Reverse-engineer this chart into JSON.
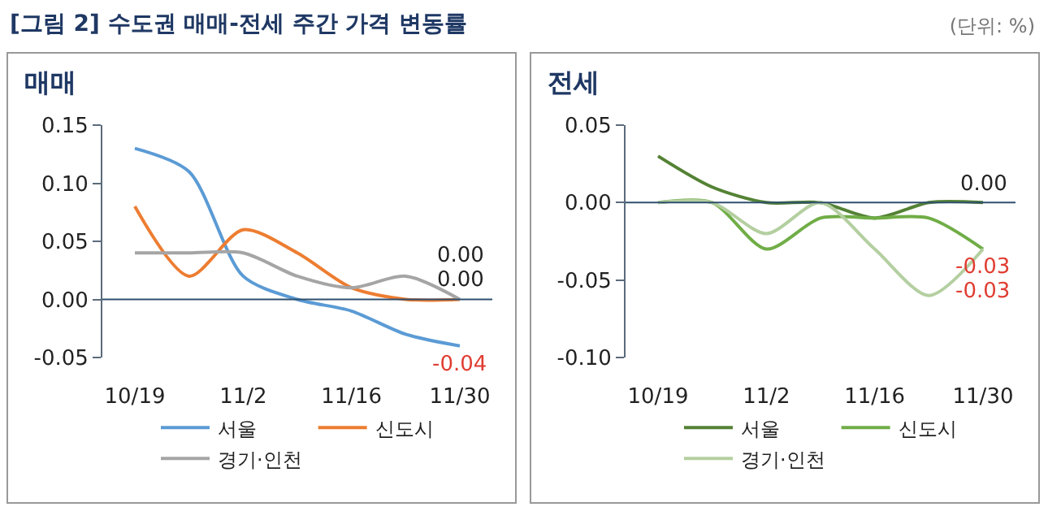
{
  "chart_data": [
    {
      "type": "line",
      "title": "매매",
      "annotations": [
        "[그림 2] 수도권 매매-전세 주간 가격 변동률",
        "(단위: %)"
      ],
      "categories": [
        "10/19",
        null,
        "11/2",
        null,
        "11/16",
        null,
        "11/30"
      ],
      "series": [
        {
          "name": "서울",
          "color": "#5b9bd5",
          "values": [
            0.13,
            0.11,
            0.02,
            0.0,
            -0.01,
            -0.03,
            -0.04
          ],
          "value_labels": [
            null,
            null,
            null,
            null,
            null,
            null,
            "-0.04"
          ]
        },
        {
          "name": "신도시",
          "color": "#ed7d31",
          "values": [
            0.08,
            0.02,
            0.06,
            0.04,
            0.01,
            0.0,
            0.0
          ],
          "value_labels": [
            null,
            null,
            null,
            null,
            null,
            null,
            "0.00"
          ]
        },
        {
          "name": "경기·인천",
          "color": "#a5a5a5",
          "values": [
            0.04,
            0.04,
            0.04,
            0.02,
            0.01,
            0.02,
            0.0
          ],
          "value_labels": [
            null,
            null,
            null,
            null,
            null,
            null,
            "0.00"
          ]
        }
      ],
      "ylim": [
        -0.05,
        0.15
      ],
      "yticks": [
        -0.05,
        {
          "value": 0,
          "label": "0.00"
        },
        0.05,
        {
          "value": 0.1,
          "label": "0.10"
        },
        0.15
      ],
      "ref_lines": [
        {
          "axis": "y",
          "value": 0,
          "color": "#2f4f6f"
        }
      ],
      "grid": false,
      "legend": "bottom",
      "marker": "none"
    },
    {
      "type": "line",
      "title": "전세",
      "categories": [
        "10/19",
        null,
        "11/2",
        null,
        "11/16",
        null,
        "11/30"
      ],
      "series": [
        {
          "name": "서울",
          "color": "#548235",
          "values": [
            0.03,
            0.01,
            0.0,
            0.0,
            -0.01,
            0.0,
            0.0
          ],
          "value_labels": [
            null,
            null,
            null,
            null,
            null,
            null,
            "0.00"
          ]
        },
        {
          "name": "신도시",
          "color": "#70ad47",
          "values": [
            0.0,
            0.0,
            -0.03,
            -0.01,
            -0.01,
            -0.01,
            -0.03
          ],
          "value_labels": [
            null,
            null,
            null,
            null,
            null,
            null,
            "-0.03"
          ]
        },
        {
          "name": "경기·인천",
          "color": "#b4cfa0",
          "values": [
            0.0,
            0.0,
            -0.02,
            0.0,
            -0.03,
            -0.06,
            -0.03
          ],
          "value_labels": [
            null,
            null,
            null,
            null,
            null,
            null,
            "-0.03"
          ]
        }
      ],
      "ylim": [
        -0.1,
        0.05
      ],
      "yticks": [
        {
          "value": -0.1,
          "label": "-0.10"
        },
        -0.05,
        {
          "value": 0,
          "label": "0.00"
        },
        0.05
      ],
      "ref_lines": [
        {
          "axis": "y",
          "value": 0,
          "color": "#2f4f6f"
        }
      ],
      "grid": false,
      "legend": "bottom",
      "marker": "none"
    }
  ]
}
